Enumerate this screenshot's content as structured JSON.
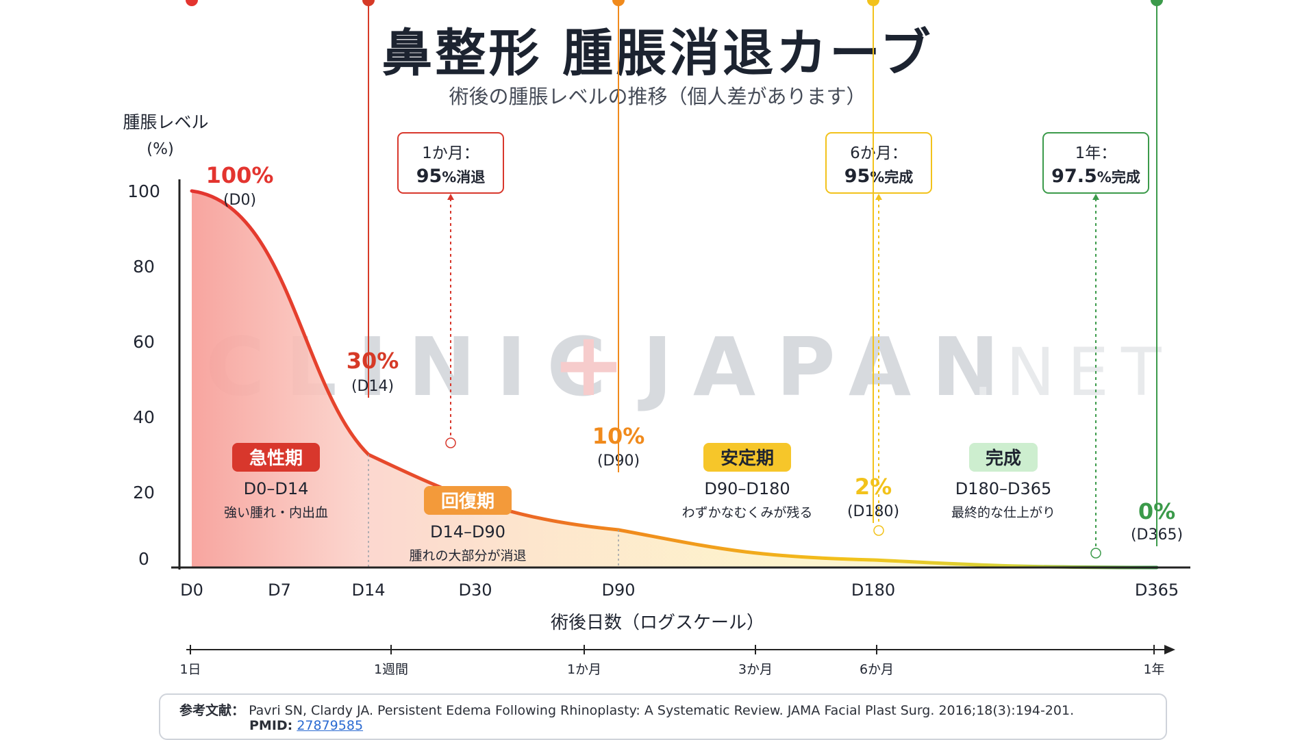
{
  "title": "鼻整形 腫脹消退カーブ",
  "subtitle": "術後の腫脹レベルの推移（個人差があります）",
  "watermark": {
    "main": "CLINIC",
    "plus": "+",
    "main2": "JAPAN",
    "suffix": ".NET"
  },
  "chart_data": {
    "type": "area",
    "xlabel": "術後日数（ログスケール）",
    "ylabel_line1": "腫脹レベル",
    "ylabel_line2": "(%)",
    "ylim": [
      0,
      100
    ],
    "yticks": [
      0,
      20,
      40,
      60,
      80,
      100
    ],
    "x_scale": "log",
    "x_ticks": [
      "D0",
      "D7",
      "D14",
      "D30",
      "D90",
      "D180",
      "D365"
    ],
    "curve": [
      {
        "day": 0,
        "swelling": 100
      },
      {
        "day": 14,
        "swelling": 30
      },
      {
        "day": 90,
        "swelling": 10
      },
      {
        "day": 180,
        "swelling": 2
      },
      {
        "day": 365,
        "swelling": 0
      }
    ],
    "points": [
      {
        "day": 0,
        "label": "100%",
        "sub": "(D0)",
        "color": "#e3342f"
      },
      {
        "day": 14,
        "label": "30%",
        "sub": "(D14)",
        "color": "#d63a27"
      },
      {
        "day": 90,
        "label": "10%",
        "sub": "(D90)",
        "color": "#f08a1c"
      },
      {
        "day": 180,
        "label": "2%",
        "sub": "(D180)",
        "color": "#f2c21b"
      },
      {
        "day": 365,
        "label": "0%",
        "sub": "(D365)",
        "color": "#3b9a4a"
      }
    ],
    "phases": [
      {
        "badge": "急性期",
        "range": "D0–D14",
        "desc": "強い腫れ・内出血",
        "badge_color": "#d8372c",
        "badge_text_color": "#ffffff"
      },
      {
        "badge": "回復期",
        "range": "D14–D90",
        "desc": "腫れの大部分が消退",
        "badge_color": "#f39a3a",
        "badge_text_color": "#ffffff"
      },
      {
        "badge": "安定期",
        "range": "D90–D180",
        "desc": "わずかなむくみが残る",
        "badge_color": "#f6c62a",
        "badge_text_color": "#1f2430"
      },
      {
        "badge": "完成",
        "range": "D180–D365",
        "desc": "最終的な仕上がり",
        "badge_color": "#cdeecf",
        "badge_text_color": "#1f2430"
      }
    ],
    "milestones": [
      {
        "head": "1か月：",
        "value": "95",
        "unit": "%消退",
        "color": "#d8372c"
      },
      {
        "head": "6か月：",
        "value": "95",
        "unit": "%完成",
        "color": "#f2c21b"
      },
      {
        "head": "1年：",
        "value": "97.5",
        "unit": "%完成",
        "color": "#3b9a4a"
      }
    ],
    "timeline_ticks": [
      "1日",
      "1週間",
      "1か月",
      "3か月",
      "6か月",
      "1年"
    ],
    "colors": {
      "red": "#e3342f",
      "orange": "#f08a1c",
      "yellow": "#f2c21b",
      "green": "#3b9a4a",
      "axis": "#222222"
    }
  },
  "reference": {
    "label": "参考文献：",
    "citation": "Pavri SN, Clardy JA. Persistent Edema Following Rhinoplasty: A Systematic Review. JAMA Facial Plast Surg. 2016;18(3):194-201.",
    "pmid_label": "PMID:",
    "pmid": "27879585"
  }
}
